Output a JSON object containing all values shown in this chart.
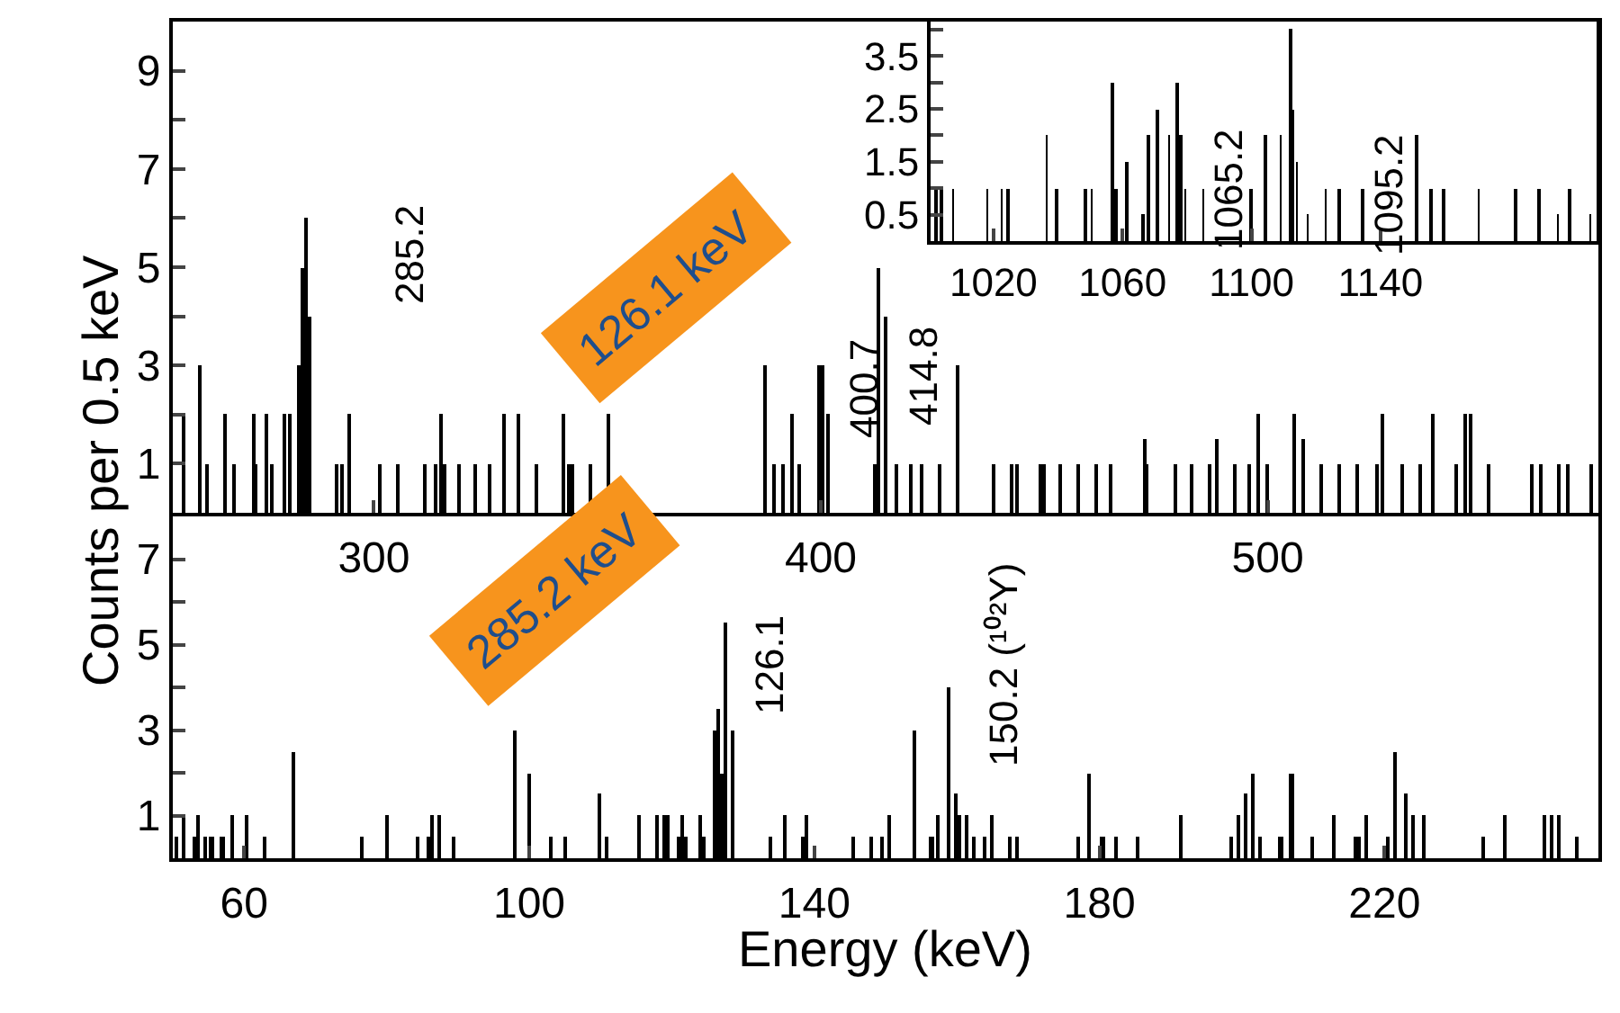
{
  "chart_data": [
    {
      "type": "bar",
      "color": "#000000",
      "x": [
        257.5,
        261,
        262.5,
        266.5,
        268.5,
        273,
        273.5,
        276,
        277,
        280,
        281,
        283,
        284,
        285,
        285.5,
        291.5,
        293,
        294.5,
        301.5,
        305.5,
        311.5,
        314,
        315,
        316,
        319,
        322.5,
        326,
        329,
        332.5,
        336.5,
        342.5,
        343.5,
        344.5,
        348.5,
        352.5,
        387.5,
        389.5,
        391.5,
        393.5,
        395,
        399.5,
        400.5,
        401.5,
        412,
        413,
        414.5,
        417,
        420,
        422.5,
        426.5,
        430.5,
        438.5,
        442.5,
        444,
        449,
        450,
        453.5,
        457.5,
        461.5,
        465,
        472.5,
        473,
        479.5,
        483,
        487,
        488.5,
        492.5,
        496,
        498,
        500,
        506,
        508,
        512,
        516,
        520,
        524.5,
        525.5,
        530,
        534,
        537,
        542,
        544,
        545.5,
        549.5,
        559,
        561,
        565,
        567,
        572.5
      ],
      "values": [
        2,
        3,
        1,
        2,
        1,
        2,
        1,
        2,
        1,
        2,
        2,
        3,
        5,
        6,
        4,
        1,
        1,
        2,
        1,
        1,
        1,
        1,
        2,
        1,
        1,
        1,
        1,
        2,
        2,
        1,
        2,
        1,
        1,
        1,
        2,
        3,
        1,
        1,
        2,
        1,
        3,
        3,
        2,
        1,
        5,
        4,
        1,
        1,
        1,
        1,
        3,
        1,
        1,
        1,
        1,
        1,
        1,
        1,
        1,
        1,
        1.5,
        1,
        1,
        1,
        1,
        1.5,
        1,
        1,
        2,
        1,
        2,
        1.5,
        1,
        1,
        1,
        1,
        2,
        1,
        1,
        2,
        1,
        2,
        2,
        1,
        1,
        1,
        1,
        1,
        1
      ],
      "xlim": [
        255,
        574
      ],
      "ylim": [
        0,
        10
      ],
      "xticks": [
        300,
        400,
        500
      ],
      "yticks": [
        1,
        {
          "value": 2,
          "label": null
        },
        3,
        {
          "value": 4,
          "label": null
        },
        5,
        {
          "value": 6,
          "label": null
        },
        7,
        {
          "value": 8,
          "label": null
        },
        9
      ],
      "annotations": [
        "126.1 keV",
        "285.2",
        "400.7",
        "414.8"
      ]
    },
    {
      "type": "bar",
      "color": "#000000",
      "x": [
        1002,
        1004,
        1007.5,
        1018,
        1022.5,
        1024.5,
        1036.5,
        1039.5,
        1048.5,
        1050.5,
        1057,
        1058,
        1061.5,
        1066.5,
        1068,
        1071,
        1074.5,
        1077,
        1078,
        1079.5,
        1085,
        1100,
        1104.5,
        1109,
        1112,
        1113,
        1114,
        1117.5,
        1123,
        1127,
        1134.5,
        1151,
        1155.5,
        1159.5,
        1170.5,
        1182,
        1189,
        1195,
        1198.5,
        1205
      ],
      "values": [
        1,
        1,
        1,
        1,
        1,
        1,
        2,
        1,
        1,
        1,
        3,
        1,
        1.5,
        0.5,
        2,
        2.5,
        2,
        3,
        2,
        1,
        1,
        1,
        2,
        2,
        4,
        2.5,
        1.5,
        0.5,
        1,
        1,
        1,
        2,
        1,
        1,
        1,
        1,
        1,
        0.5,
        1,
        0.5
      ],
      "xlim": [
        1000.5,
        1207
      ],
      "ylim": [
        0,
        4.15
      ],
      "xticks": [
        1020,
        1060,
        1100,
        1140
      ],
      "yticks": [
        0.5,
        {
          "value": 1,
          "label": null
        },
        1.5,
        {
          "value": 2,
          "label": null
        },
        2.5,
        {
          "value": 3,
          "label": null
        },
        3.5,
        {
          "value": 4,
          "label": null
        }
      ],
      "annotations": [
        "1065.2",
        "1095.2"
      ]
    },
    {
      "type": "bar",
      "color": "#000000",
      "x": [
        50.5,
        51.5,
        53,
        53.5,
        54.5,
        55.5,
        57,
        58.5,
        60.5,
        63,
        67,
        76.5,
        80,
        84.5,
        86,
        86.5,
        87.5,
        89.5,
        98,
        100,
        103,
        105,
        110,
        111,
        115.5,
        118,
        119,
        119.5,
        121,
        121.5,
        122,
        124,
        124.5,
        126,
        126.5,
        127,
        127.5,
        128.5,
        134,
        136,
        138.5,
        139,
        145.5,
        148,
        149.5,
        150.5,
        154,
        156.5,
        157.5,
        159,
        160,
        160.5,
        161.5,
        162.5,
        164,
        165,
        167.5,
        168.5,
        177,
        178.5,
        180.5,
        182.5,
        185.5,
        191.5,
        198.5,
        199.5,
        200.5,
        201.5,
        202.5,
        205.5,
        207,
        210,
        213,
        216,
        216.5,
        217.5,
        220.5,
        221.5,
        223,
        224,
        225.5,
        234,
        237,
        242.5,
        243.5,
        244.5,
        247
      ],
      "values": [
        0.5,
        1,
        0.5,
        1,
        0.5,
        0.5,
        0.5,
        1,
        1,
        0.5,
        2.5,
        0.5,
        1,
        0.5,
        0.5,
        1,
        1,
        0.5,
        3,
        2,
        0.5,
        0.5,
        1.5,
        0.5,
        1,
        1,
        1,
        1,
        0.5,
        1,
        0.5,
        1,
        0.5,
        3,
        3.5,
        2,
        5.5,
        3,
        0.5,
        1,
        0.5,
        1,
        0.5,
        0.5,
        0.5,
        1,
        3,
        0.5,
        1,
        4,
        1.5,
        1,
        1,
        0.5,
        0.5,
        1,
        0.5,
        0.5,
        0.5,
        2,
        0.5,
        0.5,
        0.5,
        1,
        0.5,
        1,
        1.5,
        2,
        0.5,
        0.5,
        2,
        0.5,
        1,
        0.5,
        0.5,
        1,
        0.5,
        2.5,
        1.5,
        1,
        1,
        0.5,
        1,
        1,
        1,
        1,
        0.5
      ],
      "xlim": [
        50,
        250
      ],
      "ylim": [
        0,
        8
      ],
      "xticks": [
        60,
        100,
        140,
        180,
        220
      ],
      "yticks": [
        1,
        {
          "value": 2,
          "label": null
        },
        3,
        {
          "value": 4,
          "label": null
        },
        5,
        {
          "value": 6,
          "label": null
        },
        7
      ],
      "xlabel": "Energy (keV)",
      "ylabel": "Counts per 0.5 keV",
      "annotations": [
        "285.2 keV",
        "126.1",
        "150.2 (¹⁰²Y)"
      ]
    }
  ]
}
